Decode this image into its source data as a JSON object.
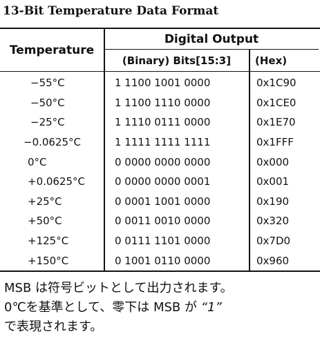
{
  "title": "13-Bit Temperature Data Format",
  "table": {
    "temp_header": "Temperature",
    "group_header": "Digital Output",
    "bin_header": "(Binary) Bits[15:3]",
    "hex_header": "(Hex)",
    "rows": [
      {
        "temp": "−55°C",
        "bin": "1 1100 1001 0000",
        "hex": "0x1C90"
      },
      {
        "temp": "−50°C",
        "bin": "1 1100 1110 0000",
        "hex": "0x1CE0"
      },
      {
        "temp": "−25°C",
        "bin": "1 1110 0111 0000",
        "hex": "0x1E70"
      },
      {
        "temp": "−0.0625°C",
        "bin": "1 1111 1111 1111",
        "hex": "0x1FFF"
      },
      {
        "temp": "0°C",
        "bin": "0 0000 0000 0000",
        "hex": "0x000"
      },
      {
        "temp": "+0.0625°C",
        "bin": "0 0000 0000 0001",
        "hex": "0x001"
      },
      {
        "temp": "+25°C",
        "bin": "0 0001 1001 0000",
        "hex": "0x190"
      },
      {
        "temp": "+50°C",
        "bin": "0 0011 0010 0000",
        "hex": "0x320"
      },
      {
        "temp": "+125°C",
        "bin": "0 0111 1101 0000",
        "hex": "0x7D0"
      },
      {
        "temp": "+150°C",
        "bin": "0 1001 0110 0000",
        "hex": "0x960"
      }
    ]
  },
  "note": {
    "line1": "MSB は符号ビットとして出力されます。",
    "line2_pre": "0℃を基準として、零下は MSB が ",
    "line2_quote": "“1”",
    "line3": "で表現されます。"
  }
}
